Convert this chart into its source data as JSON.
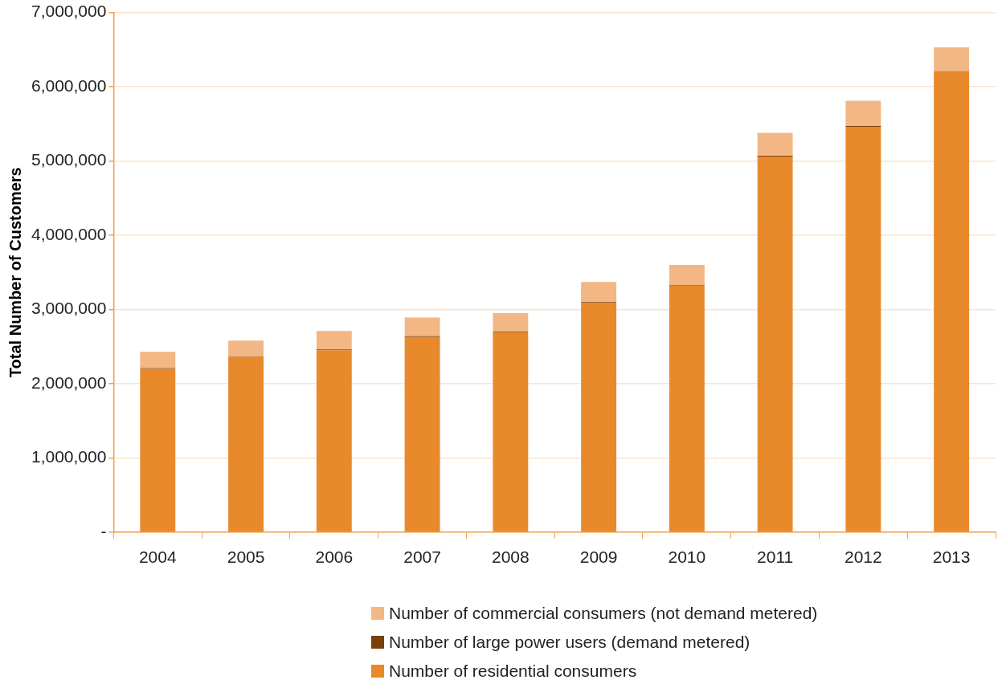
{
  "chart_data": {
    "type": "bar",
    "stacked": true,
    "ylabel": "Total Number of Customers",
    "categories": [
      "2004",
      "2005",
      "2006",
      "2007",
      "2008",
      "2009",
      "2010",
      "2011",
      "2012",
      "2013"
    ],
    "series": [
      {
        "name": "Number of residential consumers",
        "color": "#e8892b",
        "values": [
          2200000,
          2350000,
          2450000,
          2630000,
          2690000,
          3090000,
          3320000,
          5060000,
          5460000,
          6200000
        ]
      },
      {
        "name": "Number of large power users (demand metered)",
        "color": "#7a3f0a",
        "values": [
          10000,
          10000,
          10000,
          10000,
          10000,
          10000,
          10000,
          10000,
          10000,
          10000
        ]
      },
      {
        "name": "Number of commercial consumers (not demand metered)",
        "color": "#f2b785",
        "values": [
          220000,
          220000,
          250000,
          250000,
          250000,
          270000,
          270000,
          310000,
          340000,
          320000
        ]
      }
    ],
    "ylim": [
      0,
      7000000
    ],
    "yticks": [
      {
        "value": 0,
        "label": "-"
      },
      {
        "value": 1000000,
        "label": "1,000,000"
      },
      {
        "value": 2000000,
        "label": "2,000,000"
      },
      {
        "value": 3000000,
        "label": "3,000,000"
      },
      {
        "value": 4000000,
        "label": "4,000,000"
      },
      {
        "value": 5000000,
        "label": "5,000,000"
      },
      {
        "value": 6000000,
        "label": "6,000,000"
      },
      {
        "value": 7000000,
        "label": "7,000,000"
      }
    ],
    "grid": "y",
    "legend": "bottom"
  }
}
